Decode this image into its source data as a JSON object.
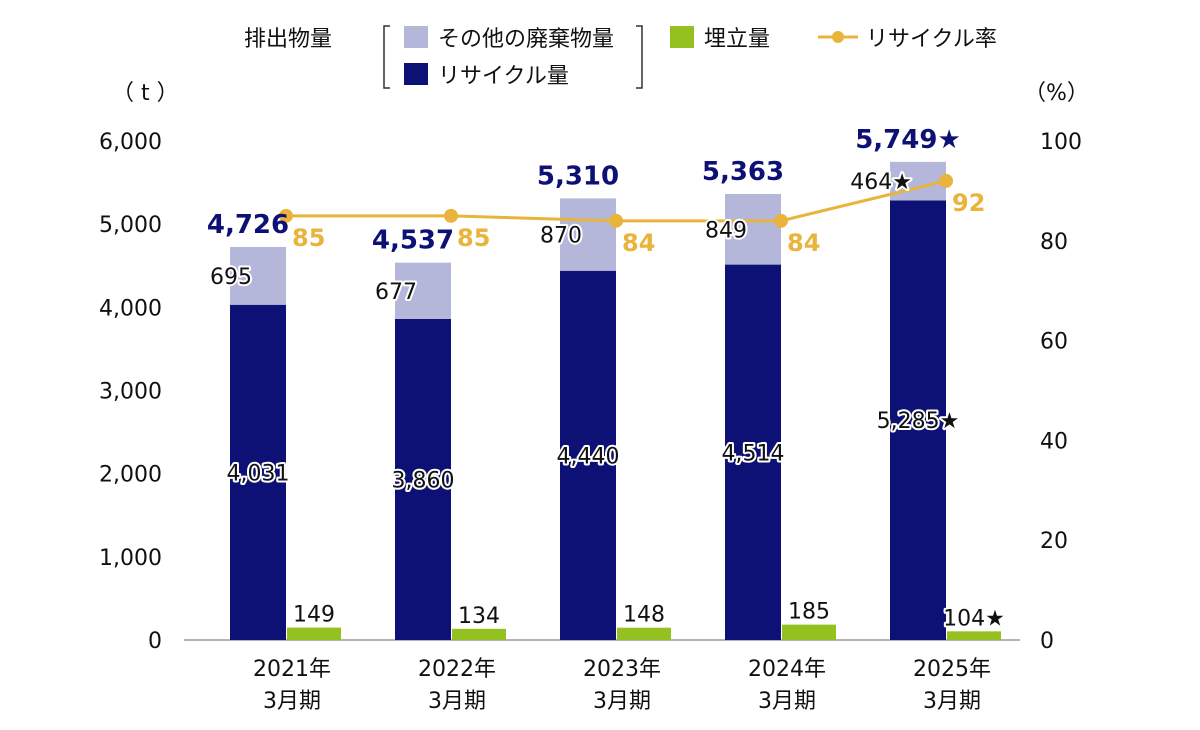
{
  "chart_data": {
    "type": "bar",
    "legend": {
      "group_label": "排出物量",
      "entries": [
        "その他の廃棄物量",
        "リサイクル量",
        "埋立量",
        "リサイクル率"
      ]
    },
    "colors": {
      "other": "#b4b7da",
      "recycle": "#0d1175",
      "landfill": "#94c11f",
      "rate": "#e8b43c"
    },
    "left_unit": "（ t ）",
    "right_unit": "（%）",
    "left_axis": {
      "min": 0,
      "max": 6000,
      "ticks": [
        0,
        1000,
        2000,
        3000,
        4000,
        5000,
        6000
      ],
      "tick_labels": [
        "0",
        "1,000",
        "2,000",
        "3,000",
        "4,000",
        "5,000",
        "6,000"
      ]
    },
    "right_axis": {
      "min": 0,
      "max": 100,
      "ticks": [
        0,
        20,
        40,
        60,
        80,
        100
      ],
      "tick_labels": [
        "0",
        "20",
        "40",
        "60",
        "80",
        "100"
      ]
    },
    "categories": [
      {
        "line1": "2021年",
        "line2": "3月期"
      },
      {
        "line1": "2022年",
        "line2": "3月期"
      },
      {
        "line1": "2023年",
        "line2": "3月期"
      },
      {
        "line1": "2024年",
        "line2": "3月期"
      },
      {
        "line1": "2025年",
        "line2": "3月期"
      }
    ],
    "recycle": [
      4031,
      3860,
      4440,
      4514,
      5285
    ],
    "recycle_labels": [
      "4,031",
      "3,860",
      "4,440",
      "4,514",
      "5,285★"
    ],
    "other": [
      695,
      677,
      870,
      849,
      464
    ],
    "other_labels": [
      "695",
      "677",
      "870",
      "849",
      "464★"
    ],
    "landfill": [
      149,
      134,
      148,
      185,
      104
    ],
    "landfill_labels": [
      "149",
      "134",
      "148",
      "185",
      "104★"
    ],
    "totals": [
      4726,
      4537,
      5310,
      5363,
      5749
    ],
    "total_labels": [
      "4,726",
      "4,537",
      "5,310",
      "5,363",
      "5,749★"
    ],
    "rate": [
      85,
      85,
      84,
      84,
      92
    ],
    "rate_labels": [
      "85",
      "85",
      "84",
      "84",
      "92"
    ]
  }
}
